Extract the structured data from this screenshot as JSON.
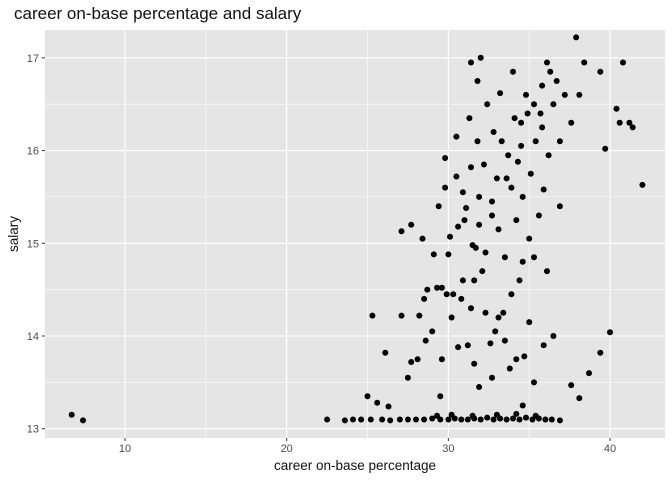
{
  "chart_data": {
    "type": "scatter",
    "title": "career on-base percentage and salary",
    "xlabel": "career on-base percentage",
    "ylabel": "salary",
    "xlim": [
      5.05,
      43.4
    ],
    "ylim": [
      12.9,
      17.3
    ],
    "x_ticks": [
      10,
      20,
      30,
      40
    ],
    "y_ticks": [
      13,
      14,
      15,
      16,
      17
    ],
    "x_tick_labels": [
      "10",
      "20",
      "30",
      "40"
    ],
    "y_tick_labels": [
      "13",
      "14",
      "15",
      "16",
      "17"
    ],
    "grid": true,
    "legend": "none",
    "colors": {
      "panel": "#e5e5e5",
      "grid_major": "#ffffff",
      "point": "#000000"
    },
    "points": [
      [
        6.7,
        13.15
      ],
      [
        7.4,
        13.09
      ],
      [
        22.5,
        13.1
      ],
      [
        23.6,
        13.09
      ],
      [
        24.1,
        13.1
      ],
      [
        24.6,
        13.1
      ],
      [
        25.2,
        13.1
      ],
      [
        25.9,
        13.1
      ],
      [
        26.4,
        13.09
      ],
      [
        27.0,
        13.1
      ],
      [
        27.5,
        13.1
      ],
      [
        28.0,
        13.1
      ],
      [
        28.5,
        13.1
      ],
      [
        29.0,
        13.11
      ],
      [
        29.5,
        13.1
      ],
      [
        30.0,
        13.1
      ],
      [
        30.4,
        13.11
      ],
      [
        30.8,
        13.1
      ],
      [
        31.2,
        13.1
      ],
      [
        31.6,
        13.11
      ],
      [
        32.0,
        13.1
      ],
      [
        32.4,
        13.12
      ],
      [
        32.8,
        13.1
      ],
      [
        33.2,
        13.11
      ],
      [
        33.6,
        13.1
      ],
      [
        34.0,
        13.11
      ],
      [
        34.4,
        13.1
      ],
      [
        34.8,
        13.12
      ],
      [
        35.2,
        13.1
      ],
      [
        35.6,
        13.11
      ],
      [
        36.0,
        13.1
      ],
      [
        36.4,
        13.1
      ],
      [
        36.9,
        13.09
      ],
      [
        29.3,
        13.14
      ],
      [
        30.2,
        13.15
      ],
      [
        31.5,
        13.14
      ],
      [
        33.0,
        13.15
      ],
      [
        34.2,
        13.16
      ],
      [
        35.4,
        13.14
      ],
      [
        25.0,
        13.35
      ],
      [
        25.6,
        13.28
      ],
      [
        26.3,
        13.24
      ],
      [
        29.5,
        13.35
      ],
      [
        34.6,
        13.25
      ],
      [
        37.6,
        13.47
      ],
      [
        38.1,
        13.33
      ],
      [
        25.3,
        14.22
      ],
      [
        26.1,
        13.82
      ],
      [
        27.1,
        14.22
      ],
      [
        27.5,
        13.55
      ],
      [
        27.7,
        13.72
      ],
      [
        28.1,
        13.75
      ],
      [
        28.6,
        13.95
      ],
      [
        28.2,
        14.22
      ],
      [
        28.7,
        14.5
      ],
      [
        29.3,
        14.52
      ],
      [
        29.0,
        14.05
      ],
      [
        29.6,
        14.52
      ],
      [
        29.9,
        14.45
      ],
      [
        30.3,
        14.45
      ],
      [
        30.6,
        13.88
      ],
      [
        30.9,
        14.6
      ],
      [
        31.2,
        13.9
      ],
      [
        31.6,
        13.7
      ],
      [
        31.9,
        13.45
      ],
      [
        32.3,
        14.25
      ],
      [
        32.7,
        13.55
      ],
      [
        33.1,
        14.2
      ],
      [
        33.5,
        13.95
      ],
      [
        33.9,
        14.45
      ],
      [
        34.2,
        13.75
      ],
      [
        34.6,
        14.8
      ],
      [
        35.0,
        14.15
      ],
      [
        35.3,
        13.5
      ],
      [
        35.9,
        13.9
      ],
      [
        36.1,
        14.7
      ],
      [
        36.5,
        14.0
      ],
      [
        38.7,
        13.6
      ],
      [
        39.4,
        13.82
      ],
      [
        40.0,
        14.04
      ],
      [
        27.1,
        15.13
      ],
      [
        27.7,
        15.2
      ],
      [
        28.4,
        15.05
      ],
      [
        29.4,
        15.4
      ],
      [
        29.8,
        15.6
      ],
      [
        30.1,
        15.07
      ],
      [
        30.6,
        15.18
      ],
      [
        31.1,
        15.38
      ],
      [
        31.5,
        14.98
      ],
      [
        31.9,
        15.2
      ],
      [
        32.3,
        14.9
      ],
      [
        32.7,
        15.45
      ],
      [
        33.1,
        15.15
      ],
      [
        33.5,
        14.85
      ],
      [
        33.9,
        15.6
      ],
      [
        34.2,
        15.25
      ],
      [
        34.6,
        15.5
      ],
      [
        35.0,
        15.05
      ],
      [
        35.3,
        14.85
      ],
      [
        35.6,
        15.3
      ],
      [
        35.9,
        15.58
      ],
      [
        36.9,
        15.4
      ],
      [
        29.8,
        15.92
      ],
      [
        30.5,
        15.72
      ],
      [
        31.4,
        15.82
      ],
      [
        31.8,
        16.1
      ],
      [
        32.2,
        15.85
      ],
      [
        32.8,
        16.2
      ],
      [
        33.3,
        16.1
      ],
      [
        33.7,
        15.95
      ],
      [
        34.1,
        16.35
      ],
      [
        34.5,
        16.05
      ],
      [
        34.9,
        16.4
      ],
      [
        35.4,
        16.1
      ],
      [
        35.8,
        16.25
      ],
      [
        36.2,
        15.95
      ],
      [
        36.5,
        16.5
      ],
      [
        36.9,
        16.1
      ],
      [
        31.3,
        16.35
      ],
      [
        32.4,
        16.5
      ],
      [
        33.2,
        16.62
      ],
      [
        34.0,
        16.85
      ],
      [
        34.8,
        16.6
      ],
      [
        35.3,
        16.5
      ],
      [
        35.8,
        16.7
      ],
      [
        36.1,
        16.95
      ],
      [
        36.7,
        16.75
      ],
      [
        37.2,
        16.6
      ],
      [
        37.6,
        16.3
      ],
      [
        37.9,
        17.22
      ],
      [
        38.1,
        16.6
      ],
      [
        38.4,
        16.95
      ],
      [
        39.4,
        16.85
      ],
      [
        39.7,
        16.02
      ],
      [
        40.4,
        16.45
      ],
      [
        40.6,
        16.3
      ],
      [
        40.8,
        16.95
      ],
      [
        41.2,
        16.3
      ],
      [
        41.4,
        16.25
      ],
      [
        42.0,
        15.63
      ],
      [
        32.0,
        17.0
      ],
      [
        31.8,
        16.75
      ],
      [
        31.4,
        16.95
      ],
      [
        36.3,
        16.85
      ],
      [
        34.5,
        16.3
      ],
      [
        30.5,
        16.15
      ],
      [
        35.7,
        16.4
      ],
      [
        33.6,
        15.7
      ],
      [
        32.7,
        15.3
      ],
      [
        31.0,
        15.25
      ],
      [
        30.8,
        14.4
      ],
      [
        31.6,
        14.6
      ],
      [
        32.9,
        14.05
      ],
      [
        33.4,
        14.25
      ],
      [
        34.4,
        14.6
      ],
      [
        32.1,
        14.7
      ],
      [
        31.4,
        14.3
      ],
      [
        30.2,
        14.2
      ],
      [
        29.6,
        13.75
      ],
      [
        32.6,
        13.92
      ],
      [
        33.8,
        13.65
      ],
      [
        34.7,
        13.78
      ],
      [
        30.0,
        14.88
      ],
      [
        31.7,
        14.95
      ],
      [
        33.0,
        15.7
      ],
      [
        34.3,
        15.88
      ],
      [
        35.1,
        15.75
      ],
      [
        30.9,
        15.55
      ],
      [
        29.1,
        14.88
      ],
      [
        31.9,
        15.5
      ],
      [
        28.5,
        14.4
      ]
    ]
  }
}
